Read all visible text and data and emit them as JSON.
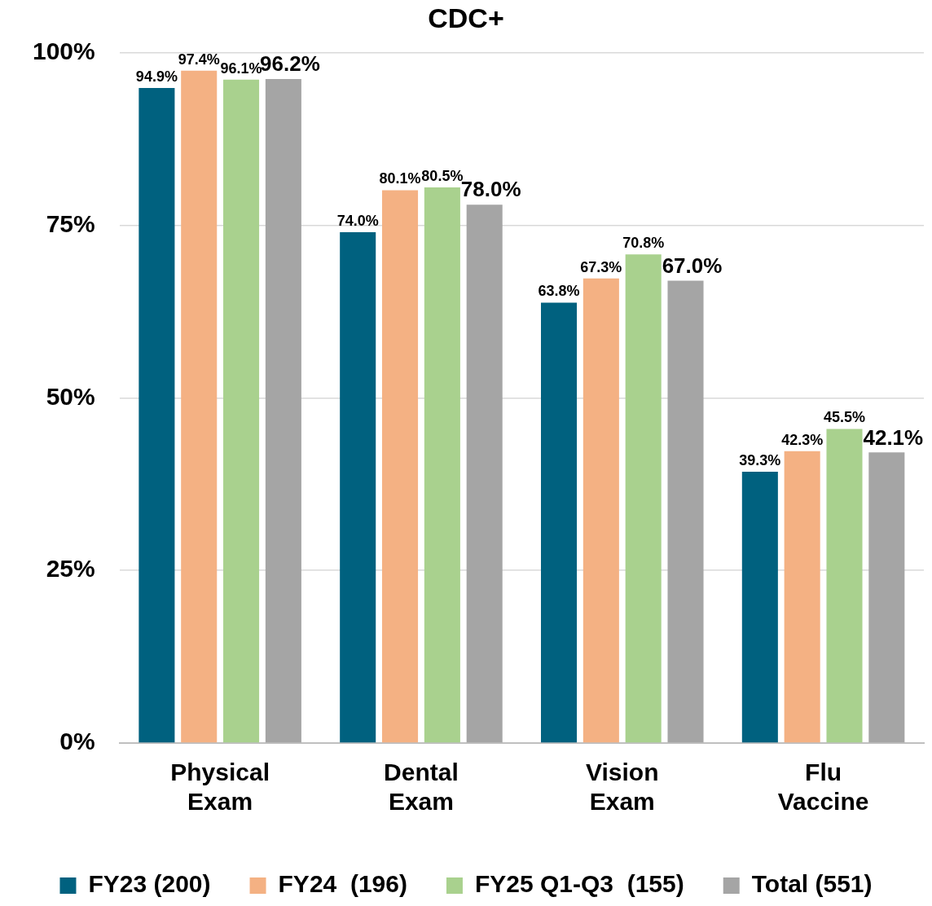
{
  "chart_data": {
    "type": "bar",
    "title": "CDC+",
    "categories": [
      "Physical Exam",
      "Dental Exam",
      "Vision Exam",
      "Flu Vaccine"
    ],
    "series": [
      {
        "name": "FY23 (200)",
        "color": "#00617f",
        "values": [
          94.9,
          74.0,
          63.8,
          39.3
        ],
        "value_labels": [
          "94.9%",
          "74.0%",
          "63.8%",
          "39.3%"
        ]
      },
      {
        "name": "FY24  (196)",
        "color": "#f4b183",
        "values": [
          97.4,
          80.1,
          67.3,
          42.3
        ],
        "value_labels": [
          "97.4%",
          "80.1%",
          "67.3%",
          "42.3%"
        ]
      },
      {
        "name": "FY25 Q1-Q3  (155)",
        "color": "#a9d18e",
        "values": [
          96.1,
          80.5,
          70.8,
          45.5
        ],
        "value_labels": [
          "96.1%",
          "80.5%",
          "70.8%",
          "45.5%"
        ]
      },
      {
        "name": "Total (551)",
        "color": "#a5a5a5",
        "values": [
          96.2,
          78.0,
          67.0,
          42.1
        ],
        "value_labels": [
          "96.2%",
          "78.0%",
          "67.0%",
          "42.1%"
        ]
      }
    ],
    "ylim": [
      0,
      100
    ],
    "yticks": [
      {
        "value": 0,
        "label": "0%"
      },
      {
        "value": 25,
        "label": "25%"
      },
      {
        "value": 50,
        "label": "50%"
      },
      {
        "value": 75,
        "label": "75%"
      },
      {
        "value": 100,
        "label": "100%"
      }
    ],
    "grid": "y",
    "legend": "bottom"
  }
}
